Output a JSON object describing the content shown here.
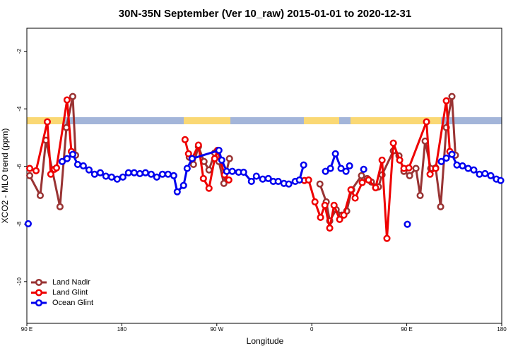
{
  "chart_data": {
    "type": "line",
    "title": "30N-35N September (Ver 10_raw)   2015-01-01 to 2020-12-31",
    "x_label": "Longitude",
    "y_label": "XCO2 - MLO trend (ppm)",
    "xlim": [
      90,
      540
    ],
    "xticks": [
      {
        "value": 90,
        "label": "90 E"
      },
      {
        "value": 180,
        "label": "180"
      },
      {
        "value": 270,
        "label": "90 W"
      },
      {
        "value": 360,
        "label": "0"
      },
      {
        "value": 450,
        "label": "90 E"
      },
      {
        "value": 540,
        "label": "180"
      }
    ],
    "ylim": [
      -11.45,
      -1.2
    ],
    "yticks": [
      -2,
      -4,
      -6,
      -8,
      -10
    ],
    "legend": "bottom-left",
    "series": [
      {
        "name": "Land Nadir",
        "color": "#993333",
        "x": [
          92.7,
          102.7,
          108.1,
          121.4,
          127.5,
          133.5,
          136.2,
          null,
          243.9,
          247.9,
          252.6,
          257.9,
          262.6,
          268.0,
          272.0,
          276.7,
          282.0,
          null,
          367.7,
          373.7,
          377.0,
          383.1,
          388.4,
          393.1,
          397.8,
          407.1,
          412.5,
          416.5,
          423.2,
          426.6,
          437.3,
          442.6,
          447.3,
          452.7,
          458.7,
          462.7,
          467.4,
          472.7,
          477.4,
          482.1,
          487.5,
          492.8,
          496.1
        ],
        "values": [
          -6.32,
          -7.01,
          -5.09,
          -7.4,
          -4.65,
          -3.57,
          -5.61,
          null,
          -5.68,
          -5.93,
          -5.31,
          -5.83,
          -6.12,
          -5.53,
          -5.83,
          -6.59,
          -5.73,
          null,
          -6.61,
          -7.23,
          -7.89,
          -7.5,
          -7.69,
          -7.55,
          -6.81,
          -6.32,
          -6.42,
          -6.54,
          -6.71,
          -6.29,
          -5.46,
          -5.63,
          -6.17,
          -6.32,
          -6.07,
          -7.01,
          -5.12,
          -6.07,
          -6.05,
          -7.4,
          -4.65,
          -3.57,
          -5.61
        ]
      },
      {
        "name": "Land Glint",
        "color": "#ee0000",
        "x": [
          92.7,
          98.7,
          109.4,
          112.7,
          116.1,
          118.1,
          128.1,
          132.2,
          null,
          239.9,
          243.2,
          246.6,
          252.6,
          257.3,
          262.6,
          268.0,
          270.7,
          277.3,
          281.4,
          null,
          353.0,
          357.0,
          363.0,
          368.3,
          372.4,
          377.0,
          381.1,
          386.4,
          390.4,
          397.1,
          401.1,
          407.8,
          413.8,
          420.5,
          426.6,
          431.2,
          437.3,
          443.3,
          447.3,
          452.0,
          468.7,
          472.1,
          477.4,
          487.5,
          490.8
        ],
        "values": [
          -6.07,
          -6.15,
          -4.45,
          -6.27,
          -6.1,
          -6.05,
          -3.69,
          -5.48,
          null,
          -5.07,
          -5.56,
          -5.73,
          -5.26,
          -6.42,
          -6.76,
          -5.73,
          -5.44,
          -6.29,
          -6.47,
          null,
          -6.49,
          -6.47,
          -7.23,
          -7.77,
          -7.35,
          -8.14,
          -7.35,
          -7.84,
          -7.69,
          -6.81,
          -7.1,
          -6.56,
          -6.47,
          -6.74,
          -5.78,
          -8.5,
          -5.19,
          -5.78,
          -6.07,
          -6.05,
          -4.45,
          -6.27,
          -6.07,
          -3.72,
          -5.48
        ]
      },
      {
        "name": "Ocean Glint",
        "color": "#0000ee",
        "x": [
          91.3,
          null,
          123.5,
          128.1,
          133.5,
          138.2,
          143.5,
          148.9,
          154.2,
          159.6,
          164.9,
          170.3,
          175.6,
          181.0,
          186.3,
          191.7,
          197.1,
          202.4,
          207.8,
          213.1,
          218.5,
          223.8,
          229.2,
          232.5,
          238.5,
          241.9,
          246.6,
          272.0,
          274.7,
          279.4,
          284.7,
          290.7,
          295.4,
          302.8,
          307.5,
          313.5,
          318.8,
          323.5,
          328.2,
          333.6,
          338.2,
          344.3,
          348.3,
          352.3,
          null,
          373.0,
          377.7,
          382.4,
          387.7,
          392.4,
          395.8,
          null,
          409.2,
          null,
          450.6,
          null,
          482.8,
          487.5,
          492.8,
          497.5,
          502.8,
          508.2,
          513.5,
          518.9,
          524.2,
          529.6,
          534.9,
          539.0
        ],
        "values": [
          -7.99,
          null,
          -5.83,
          -5.73,
          -5.58,
          -5.93,
          -5.98,
          -6.12,
          -6.27,
          -6.22,
          -6.34,
          -6.37,
          -6.44,
          -6.37,
          -6.22,
          -6.22,
          -6.25,
          -6.22,
          -6.27,
          -6.37,
          -6.27,
          -6.27,
          -6.32,
          -6.88,
          -6.66,
          -6.07,
          -5.73,
          -5.44,
          -5.78,
          -6.17,
          -6.17,
          -6.2,
          -6.2,
          -6.52,
          -6.34,
          -6.44,
          -6.42,
          -6.52,
          -6.52,
          -6.59,
          -6.61,
          -6.52,
          -6.47,
          -5.95,
          null,
          -6.17,
          -6.07,
          -5.56,
          -6.07,
          -6.17,
          -5.98,
          null,
          -6.1,
          null,
          -8.01,
          null,
          -5.83,
          -5.71,
          -5.58,
          -5.95,
          -5.98,
          -6.07,
          -6.12,
          -6.27,
          -6.25,
          -6.32,
          -6.44,
          -6.49
        ]
      }
    ]
  }
}
